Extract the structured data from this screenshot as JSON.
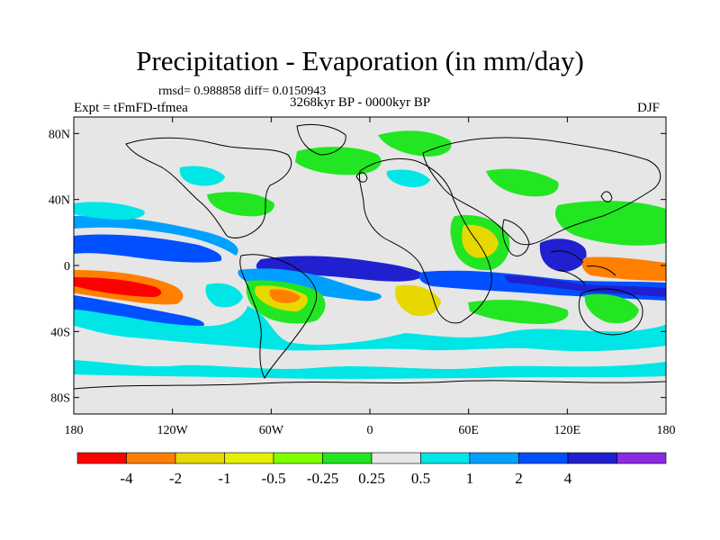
{
  "title": "Precipitation - Evaporation (in mm/day)",
  "stats": "rmsd= 0.988858 diff= 0.0150943",
  "period": "3268kyr BP - 0000kyr BP",
  "expt": "Expt = tFmFD-tfmea",
  "season": "DJF",
  "lat_ticks": [
    "80N",
    "40N",
    "0",
    "40S",
    "80S"
  ],
  "lat_values": [
    80,
    40,
    0,
    -40,
    -80
  ],
  "lon_ticks": [
    "180",
    "120W",
    "60W",
    "0",
    "60E",
    "120E",
    "180"
  ],
  "lon_values": [
    -180,
    -120,
    -60,
    0,
    60,
    120,
    180
  ],
  "colorbar": {
    "labels": [
      "-4",
      "-2",
      "-1",
      "-0.5",
      "-0.25",
      "0.25",
      "0.5",
      "1",
      "2",
      "4"
    ],
    "colors": [
      "#ff0000",
      "#ff8000",
      "#e6d800",
      "#e6f000",
      "#80ff00",
      "#22e622",
      "#e6e6e6",
      "#00e6e6",
      "#00a0ff",
      "#0050ff",
      "#2020d0",
      "#8a2be2"
    ]
  },
  "colors": {
    "land_ocean_neutral": "#e6e6e6",
    "coastline": "#000000"
  }
}
